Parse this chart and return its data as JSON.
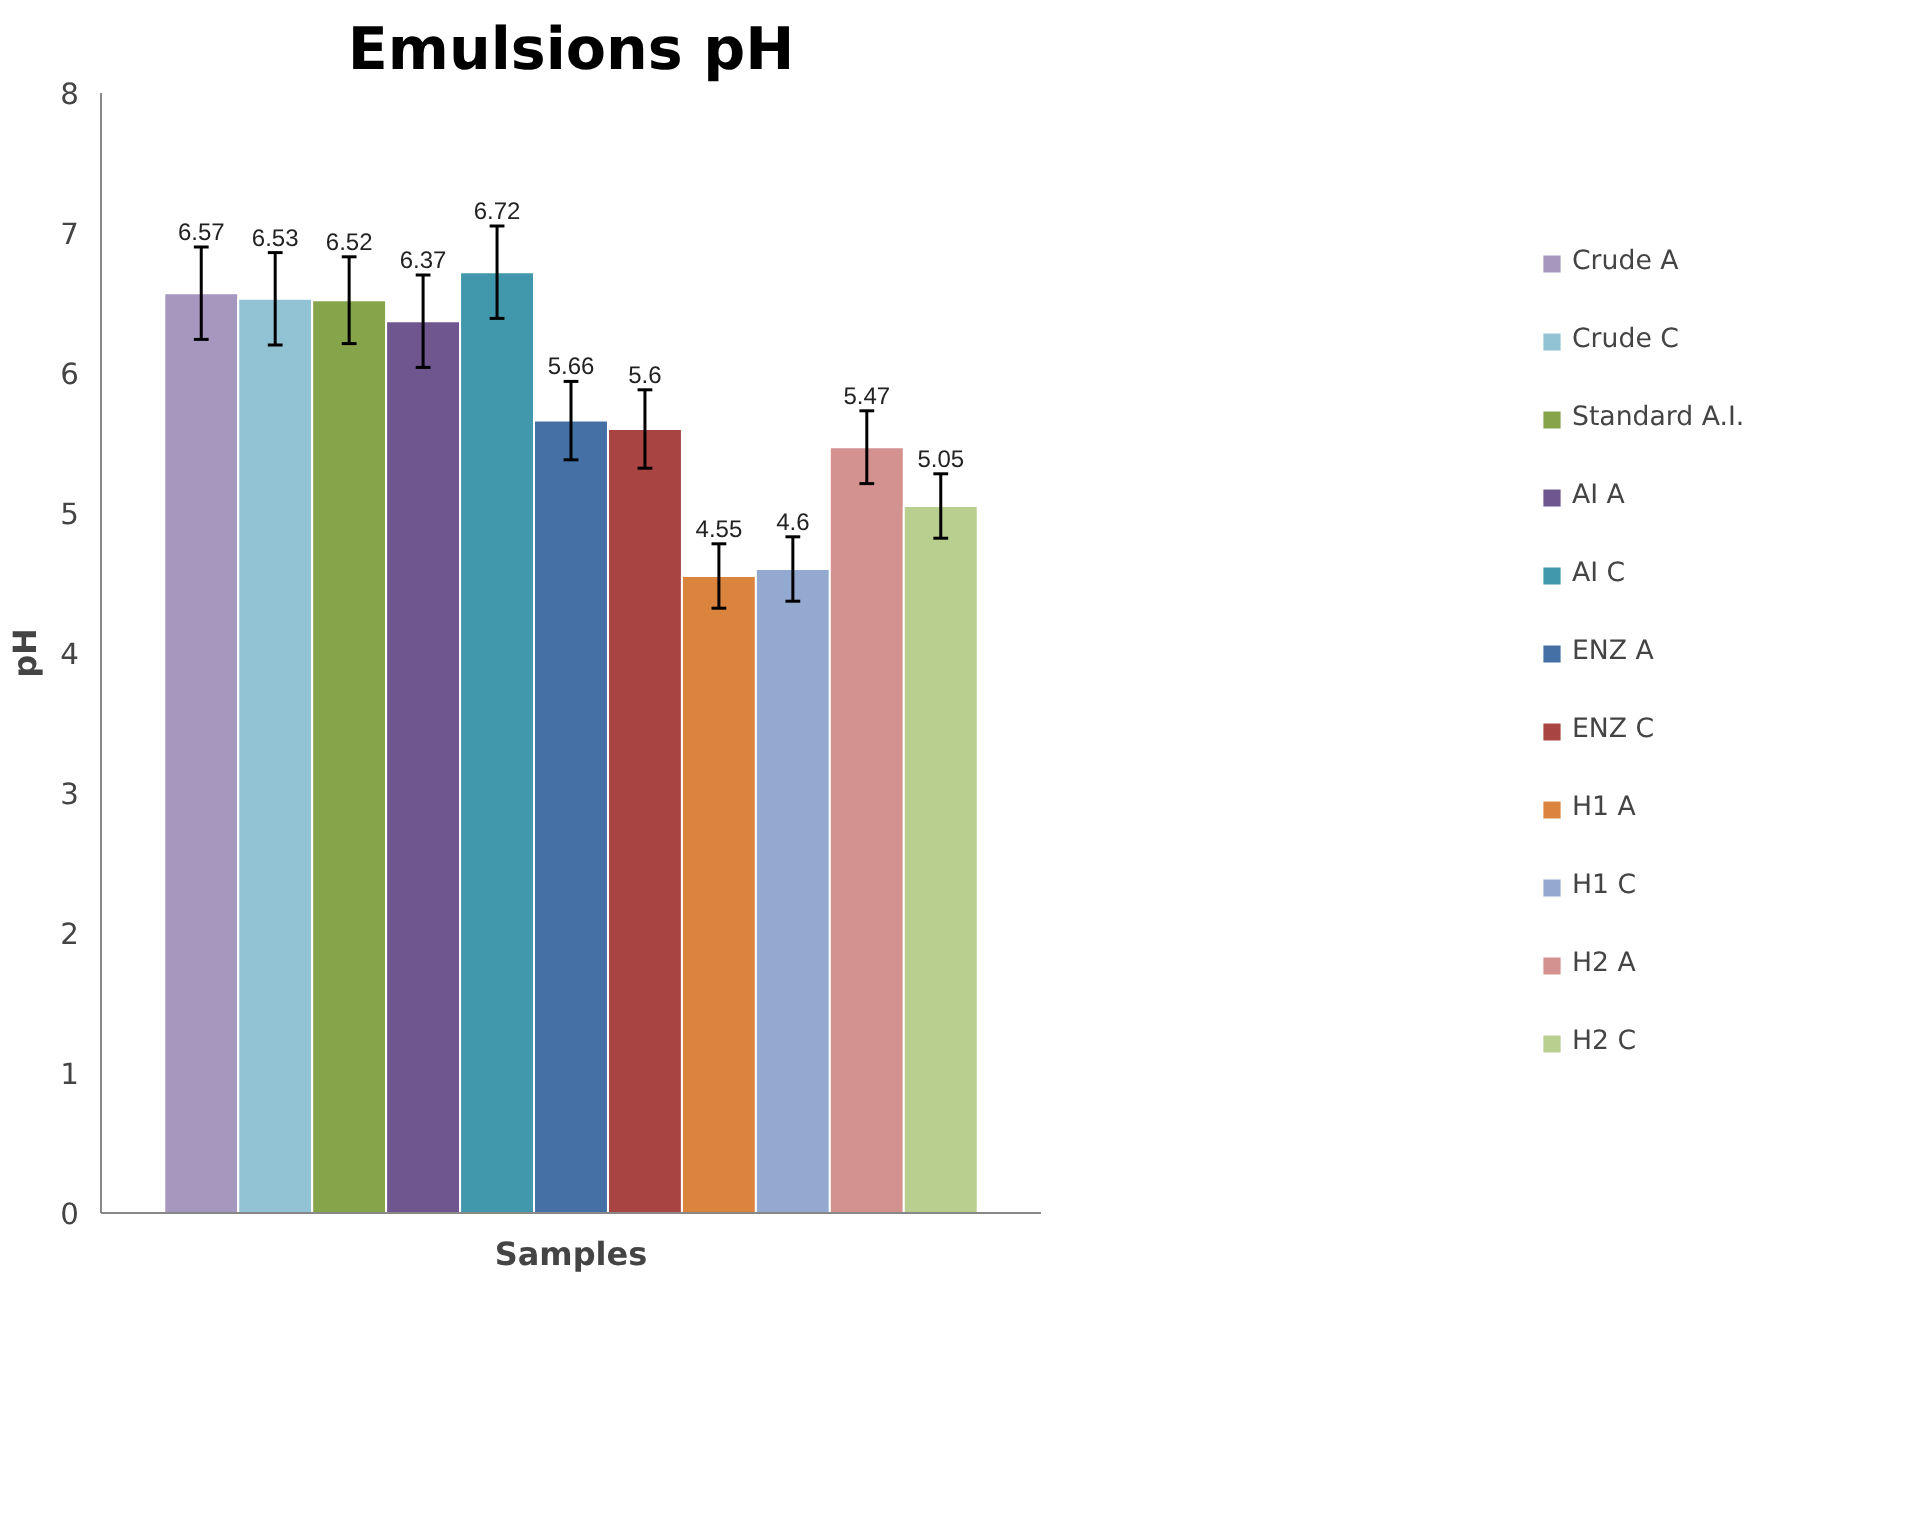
{
  "chart_data": {
    "type": "bar",
    "title": "Emulsions pH",
    "xlabel": "Samples",
    "ylabel": "pH",
    "categories": [
      null
    ],
    "series": [
      {
        "name": "Crude A",
        "color": "#a597be",
        "values": [
          6.57
        ],
        "errors": [
          0.33
        ]
      },
      {
        "name": "Crude C",
        "color": "#92c3d5",
        "values": [
          6.53
        ],
        "errors": [
          0.33
        ]
      },
      {
        "name": "Standard A.I.",
        "color": "#86a44a",
        "values": [
          6.52
        ],
        "errors": [
          0.31
        ]
      },
      {
        "name": "AI A",
        "color": "#6f568e",
        "values": [
          6.37
        ],
        "errors": [
          0.33
        ]
      },
      {
        "name": "AI C",
        "color": "#4197ac",
        "values": [
          6.72
        ],
        "errors": [
          0.33
        ]
      },
      {
        "name": "ENZ A",
        "color": "#4470a6",
        "values": [
          5.66
        ],
        "errors": [
          0.28
        ]
      },
      {
        "name": "ENZ C",
        "color": "#a84442",
        "values": [
          5.6
        ],
        "errors": [
          0.28
        ]
      },
      {
        "name": "H1 A",
        "color": "#db843d",
        "values": [
          4.55
        ],
        "errors": [
          0.23
        ]
      },
      {
        "name": "H1 C",
        "color": "#93a9d0",
        "values": [
          4.6
        ],
        "errors": [
          0.23
        ]
      },
      {
        "name": "H2 A",
        "color": "#d39190",
        "values": [
          5.47
        ],
        "errors": [
          0.26
        ]
      },
      {
        "name": "H2 C",
        "color": "#b8cf8f",
        "values": [
          5.05
        ],
        "errors": [
          0.23
        ]
      }
    ],
    "ylim": [
      0,
      8
    ],
    "yticks": [
      0,
      1,
      2,
      3,
      4,
      5,
      6,
      7,
      8
    ],
    "data_labels": true,
    "legend": "right",
    "grid": false
  }
}
